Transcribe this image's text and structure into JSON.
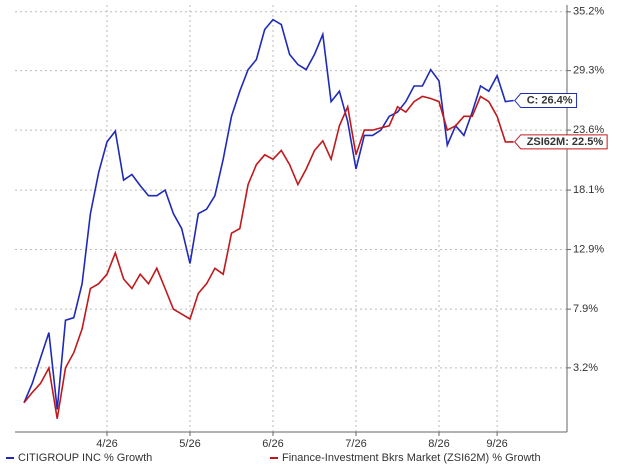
{
  "chart_data": {
    "type": "line",
    "categories": [
      null,
      null,
      null,
      null,
      null,
      null,
      null,
      null,
      null,
      null,
      "4/26",
      null,
      null,
      null,
      null,
      null,
      null,
      null,
      null,
      null,
      "5/26",
      null,
      null,
      null,
      null,
      null,
      null,
      null,
      null,
      null,
      "6/26",
      null,
      null,
      null,
      null,
      null,
      null,
      null,
      null,
      null,
      "7/26",
      null,
      null,
      null,
      null,
      null,
      null,
      null,
      null,
      null,
      "8/26",
      null,
      null,
      null,
      null,
      null,
      null,
      "9/26",
      null,
      null
    ],
    "series": [
      {
        "name": "CITIGROUP INC % Growth",
        "color": "#1f2bb8",
        "end_label": "C: 26.4%",
        "values": [
          0.5,
          2,
          4,
          6,
          0,
          7,
          7.2,
          10,
          16,
          19.7,
          22.5,
          23.5,
          19,
          19.5,
          18.5,
          17.6,
          17.6,
          18.1,
          16,
          14.7,
          11.7,
          16,
          16.4,
          17.6,
          20.9,
          24.9,
          27.3,
          29.4,
          30.4,
          33.4,
          34.4,
          33.9,
          30.9,
          29.9,
          29.4,
          30.9,
          32.9,
          26.3,
          27.3,
          24.4,
          20,
          23.1,
          23.1,
          23.6,
          24.9,
          25.3,
          26.3,
          27.8,
          27.8,
          29.4,
          28.3,
          22.2,
          24,
          23.1,
          25.3,
          27.8,
          27.3,
          28.8,
          26.3,
          26.4
        ]
      },
      {
        "name": "Finance-Investment Bkrs Market (ZSI62M) % Growth",
        "color": "#c0191c",
        "end_label": "ZSI62M: 22.5%",
        "values": [
          0.5,
          1.3,
          2,
          3.2,
          -0.7,
          3.2,
          4.4,
          6.3,
          9.6,
          10,
          10.8,
          12.6,
          10.4,
          9.6,
          10.8,
          10,
          11.3,
          9.6,
          7.9,
          7.5,
          7.1,
          9.2,
          10,
          11.3,
          10.8,
          14.3,
          14.7,
          18.6,
          20.4,
          21.3,
          20.9,
          21.7,
          20.4,
          18.6,
          20,
          21.7,
          22.6,
          20.9,
          24,
          25.8,
          21.3,
          23.6,
          23.6,
          23.8,
          24,
          25.8,
          25.3,
          26.3,
          26.8,
          26.6,
          26.3,
          23.6,
          24,
          24.9,
          24.9,
          26.8,
          26.3,
          24.9,
          22.5,
          22.5
        ]
      }
    ],
    "ylim": [
      -1.7,
      35.9
    ],
    "yticks": [
      {
        "value": 3.2,
        "label": "3.2%"
      },
      {
        "value": 7.9,
        "label": "7.9%"
      },
      {
        "value": 12.9,
        "label": "12.9%"
      },
      {
        "value": 18.1,
        "label": "18.1%"
      },
      {
        "value": 23.6,
        "label": "23.6%"
      },
      {
        "value": 29.3,
        "label": "29.3%"
      },
      {
        "value": 35.2,
        "label": "35.2%"
      }
    ],
    "log_scale": true,
    "grid": true,
    "legend": "bottom"
  }
}
